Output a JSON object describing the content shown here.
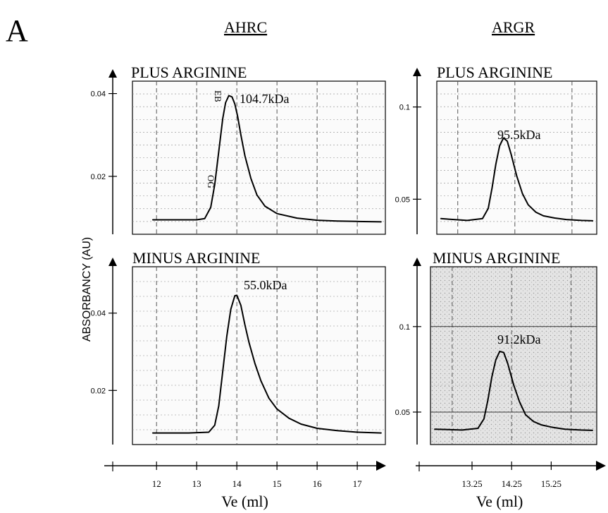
{
  "figure": {
    "panel_letter": "A",
    "y_axis_label": "ABSORBANCY (AU)",
    "columns": {
      "left": "AHRC",
      "right": "ARGR"
    }
  },
  "chart_data": [
    {
      "id": "ahrc_plus",
      "type": "line",
      "title": "PLUS ARGININE",
      "annotation": "104.7kDa",
      "peak_markers": [
        "EB",
        "OG"
      ],
      "xlim": [
        11.4,
        17.7
      ],
      "ylim": [
        0.006,
        0.043
      ],
      "y_ticks": [
        0.02,
        0.04
      ],
      "y_tick_labels": [
        "0.02",
        "0.04"
      ],
      "x_gridlines": [
        12,
        13,
        14,
        15,
        16,
        17
      ],
      "series": [
        {
          "x": [
            11.9,
            12.6,
            13.0,
            13.2,
            13.35,
            13.45,
            13.55,
            13.65,
            13.72,
            13.8,
            13.88,
            13.95,
            14.02,
            14.1,
            14.2,
            14.35,
            14.5,
            14.7,
            15.0,
            15.5,
            16.0,
            16.5,
            17.0,
            17.6
          ],
          "y": [
            0.0095,
            0.0095,
            0.0095,
            0.0098,
            0.0125,
            0.018,
            0.026,
            0.034,
            0.0378,
            0.0395,
            0.0392,
            0.0375,
            0.0345,
            0.03,
            0.025,
            0.0195,
            0.0155,
            0.0128,
            0.011,
            0.0099,
            0.0094,
            0.0092,
            0.0091,
            0.009
          ]
        }
      ]
    },
    {
      "id": "ahrc_minus",
      "type": "line",
      "title": "MINUS ARGININE",
      "annotation": "55.0kDa",
      "xlim": [
        11.4,
        17.7
      ],
      "ylim": [
        0.006,
        0.052
      ],
      "y_ticks": [
        0.02,
        0.04
      ],
      "y_tick_labels": [
        "0.02",
        "0.04"
      ],
      "x_gridlines": [
        12,
        13,
        14,
        15,
        16,
        17
      ],
      "series": [
        {
          "x": [
            11.9,
            12.8,
            13.3,
            13.45,
            13.55,
            13.65,
            13.75,
            13.85,
            13.95,
            14.0,
            14.1,
            14.2,
            14.3,
            14.45,
            14.6,
            14.8,
            15.0,
            15.3,
            15.6,
            16.0,
            16.5,
            17.0,
            17.6
          ],
          "y": [
            0.009,
            0.009,
            0.0092,
            0.011,
            0.016,
            0.025,
            0.034,
            0.041,
            0.0445,
            0.0446,
            0.042,
            0.037,
            0.0325,
            0.027,
            0.0225,
            0.018,
            0.0152,
            0.0128,
            0.0113,
            0.0102,
            0.0096,
            0.0092,
            0.009
          ]
        }
      ]
    },
    {
      "id": "argr_plus",
      "type": "line",
      "title": "PLUS ARGININE",
      "annotation": "95.5kDa",
      "xlim": [
        12.2,
        16.4
      ],
      "ylim": [
        0.031,
        0.114
      ],
      "y_ticks": [
        0.05,
        0.1
      ],
      "y_tick_labels": [
        "0.05",
        "0.1"
      ],
      "x_gridlines": [
        12.75,
        14.25,
        15.75
      ],
      "series": [
        {
          "x": [
            12.3,
            13.0,
            13.4,
            13.55,
            13.65,
            13.75,
            13.85,
            13.95,
            14.05,
            14.15,
            14.3,
            14.45,
            14.6,
            14.8,
            15.0,
            15.3,
            15.6,
            16.0,
            16.3
          ],
          "y": [
            0.0395,
            0.0385,
            0.0395,
            0.045,
            0.056,
            0.069,
            0.079,
            0.0832,
            0.0815,
            0.0745,
            0.0625,
            0.053,
            0.047,
            0.043,
            0.041,
            0.0398,
            0.039,
            0.0385,
            0.0383
          ]
        }
      ]
    },
    {
      "id": "argr_minus",
      "type": "line",
      "title": "MINUS ARGININE",
      "annotation": "91.2kDa",
      "xlim": [
        12.2,
        16.4
      ],
      "ylim": [
        0.031,
        0.135
      ],
      "y_ticks": [
        0.05,
        0.1
      ],
      "y_tick_labels": [
        "0.05",
        "0.1"
      ],
      "x_gridlines": [
        12.75,
        14.25,
        15.75
      ],
      "series": [
        {
          "x": [
            12.3,
            13.0,
            13.4,
            13.55,
            13.65,
            13.75,
            13.85,
            13.95,
            14.05,
            14.15,
            14.3,
            14.45,
            14.6,
            14.8,
            15.0,
            15.3,
            15.6,
            16.0,
            16.3
          ],
          "y": [
            0.04,
            0.0395,
            0.0405,
            0.046,
            0.057,
            0.0705,
            0.0805,
            0.0855,
            0.0848,
            0.0785,
            0.066,
            0.056,
            0.0485,
            0.0445,
            0.0425,
            0.041,
            0.04,
            0.0395,
            0.0393
          ]
        }
      ]
    }
  ],
  "x_axes": {
    "left": {
      "label": "Ve (ml)",
      "ticks": [
        12,
        13,
        14,
        15,
        16,
        17
      ],
      "tick_labels": [
        "12",
        "13",
        "14",
        "15",
        "16",
        "17"
      ]
    },
    "right": {
      "label": "Ve (ml)",
      "ticks": [
        13.25,
        14.25,
        15.25
      ],
      "tick_labels": [
        "13.25",
        "14.25",
        "15.25"
      ]
    }
  }
}
